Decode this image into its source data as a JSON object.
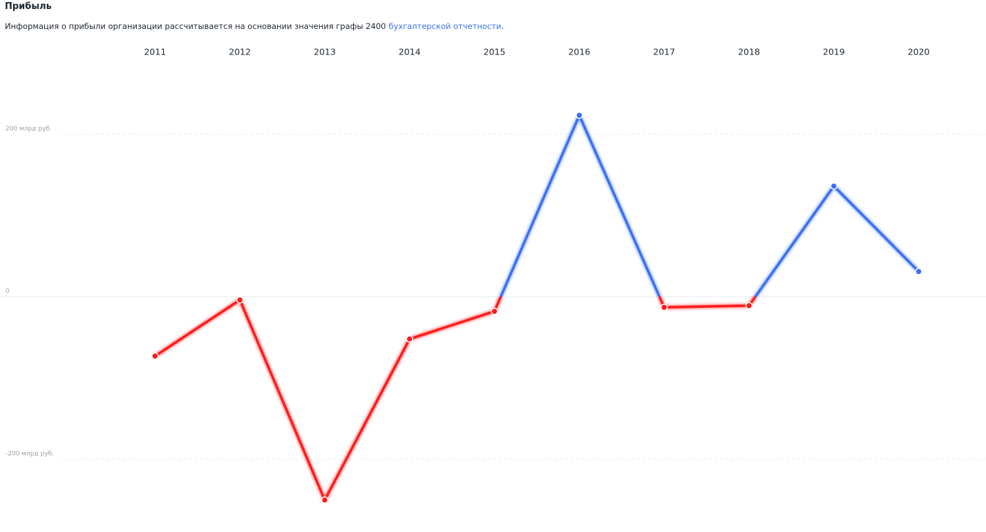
{
  "header": {
    "title": "Прибыль",
    "description": "Информация о прибыли организации рассчитывается на основании значения графы 2400",
    "link": "бухгалтерской отчетности",
    "description_end": "."
  },
  "chart_data": {
    "type": "line",
    "categories": [
      "2011",
      "2012",
      "2013",
      "2014",
      "2015",
      "2016",
      "2017",
      "2018",
      "2019",
      "2020"
    ],
    "values": [
      -73,
      -4,
      -250,
      -52,
      -18,
      223,
      -13,
      -11,
      136,
      31
    ],
    "positive_color": "#3a6ff3",
    "negative_color": "#ff1a1a",
    "ylim": [
      -280,
      280
    ],
    "yticks": [
      {
        "value": 200,
        "label": "200 млрд руб."
      },
      0,
      {
        "value": -200,
        "label": "-200 млрд руб."
      }
    ],
    "grid": true
  }
}
